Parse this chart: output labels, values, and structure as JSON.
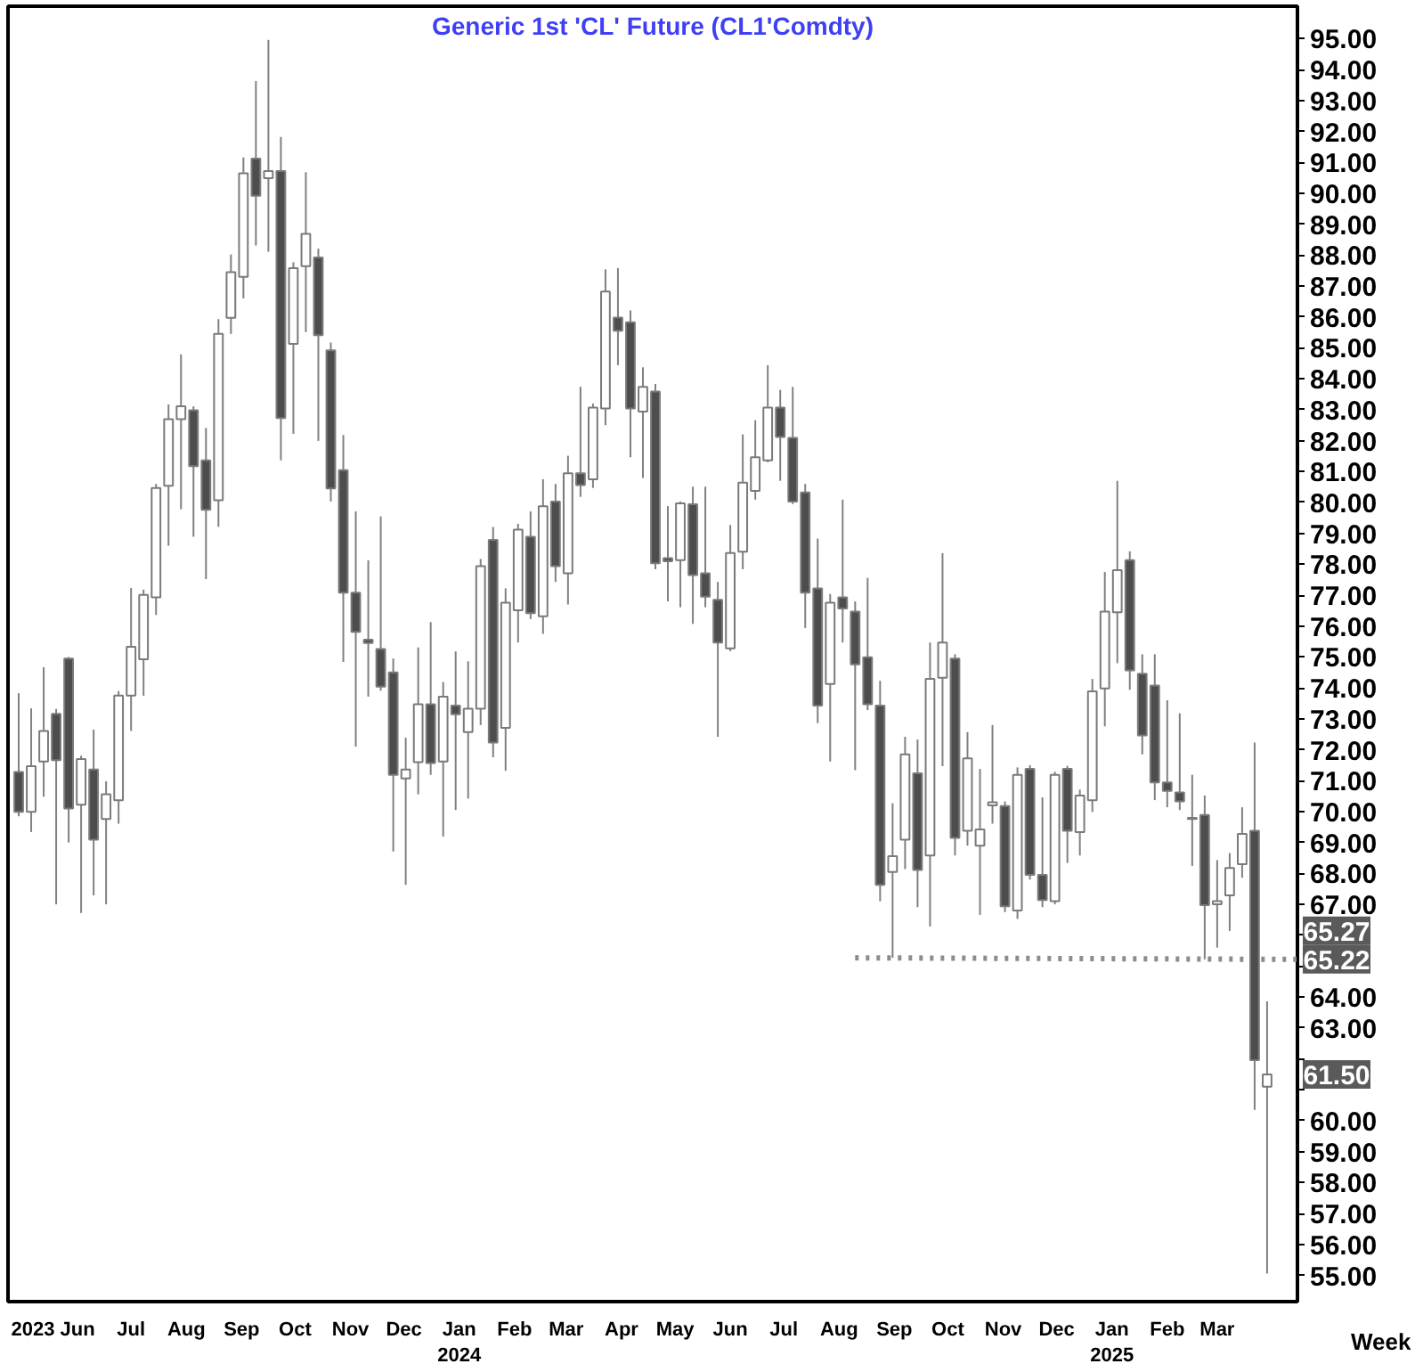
{
  "chart_data": {
    "type": "candlestick",
    "title": "Generic 1st 'CL' Future (CL1'Comdty)",
    "xlabel": "Week",
    "x": [
      "2023-05-08",
      "2023-05-15",
      "2023-05-22",
      "2023-05-29",
      "2023-06-05",
      "2023-06-12",
      "2023-06-19",
      "2023-06-26",
      "2023-07-03",
      "2023-07-10",
      "2023-07-17",
      "2023-07-24",
      "2023-07-31",
      "2023-08-07",
      "2023-08-14",
      "2023-08-21",
      "2023-08-28",
      "2023-09-04",
      "2023-09-11",
      "2023-09-18",
      "2023-09-25",
      "2023-10-02",
      "2023-10-09",
      "2023-10-16",
      "2023-10-23",
      "2023-10-30",
      "2023-11-06",
      "2023-11-13",
      "2023-11-20",
      "2023-11-27",
      "2023-12-04",
      "2023-12-11",
      "2023-12-18",
      "2023-12-25",
      "2024-01-01",
      "2024-01-08",
      "2024-01-15",
      "2024-01-22",
      "2024-01-29",
      "2024-02-05",
      "2024-02-12",
      "2024-02-19",
      "2024-02-26",
      "2024-03-04",
      "2024-03-11",
      "2024-03-18",
      "2024-03-25",
      "2024-04-01",
      "2024-04-08",
      "2024-04-15",
      "2024-04-22",
      "2024-04-29",
      "2024-05-06",
      "2024-05-13",
      "2024-05-20",
      "2024-05-27",
      "2024-06-03",
      "2024-06-10",
      "2024-06-17",
      "2024-06-24",
      "2024-07-01",
      "2024-07-08",
      "2024-07-15",
      "2024-07-22",
      "2024-07-29",
      "2024-08-05",
      "2024-08-12",
      "2024-08-19",
      "2024-08-26",
      "2024-09-02",
      "2024-09-09",
      "2024-09-16",
      "2024-09-23",
      "2024-09-30",
      "2024-10-07",
      "2024-10-14",
      "2024-10-21",
      "2024-10-28",
      "2024-11-04",
      "2024-11-11",
      "2024-11-18",
      "2024-11-25",
      "2024-12-02",
      "2024-12-09",
      "2024-12-16",
      "2024-12-23",
      "2024-12-30",
      "2025-01-06",
      "2025-01-13",
      "2025-01-20",
      "2025-01-27",
      "2025-02-03",
      "2025-02-10",
      "2025-02-17",
      "2025-02-24",
      "2025-03-03",
      "2025-03-10",
      "2025-03-17",
      "2025-03-24",
      "2025-03-31",
      "2025-04-07"
    ],
    "ohlc": [
      [
        71.28,
        73.83,
        69.85,
        69.99
      ],
      [
        69.99,
        73.34,
        69.34,
        71.47
      ],
      [
        71.62,
        74.67,
        70.48,
        72.61
      ],
      [
        73.16,
        73.32,
        67.0,
        71.66
      ],
      [
        74.95,
        75.0,
        69.0,
        70.1
      ],
      [
        70.22,
        71.81,
        66.72,
        71.7
      ],
      [
        71.36,
        72.65,
        67.29,
        69.09
      ],
      [
        69.76,
        70.98,
        67.0,
        70.56
      ],
      [
        70.37,
        73.9,
        69.61,
        73.75
      ],
      [
        73.75,
        77.23,
        72.61,
        75.33
      ],
      [
        74.93,
        77.18,
        73.75,
        77.01
      ],
      [
        76.93,
        80.6,
        76.36,
        80.47
      ],
      [
        80.54,
        83.17,
        78.6,
        82.69
      ],
      [
        82.69,
        84.79,
        79.78,
        83.11
      ],
      [
        82.98,
        83.11,
        78.89,
        81.17
      ],
      [
        81.36,
        82.41,
        77.52,
        79.76
      ],
      [
        80.07,
        85.93,
        79.21,
        85.45
      ],
      [
        85.97,
        88.02,
        85.45,
        87.45
      ],
      [
        87.3,
        91.16,
        86.6,
        90.65
      ],
      [
        91.12,
        93.63,
        88.31,
        89.92
      ],
      [
        90.49,
        94.96,
        88.11,
        90.72
      ],
      [
        90.72,
        91.82,
        81.36,
        82.73
      ],
      [
        85.13,
        87.77,
        82.22,
        87.58
      ],
      [
        87.64,
        90.68,
        85.51,
        88.69
      ],
      [
        87.92,
        88.21,
        81.99,
        85.41
      ],
      [
        84.92,
        85.17,
        80.03,
        80.45
      ],
      [
        81.04,
        82.18,
        74.84,
        77.08
      ],
      [
        77.08,
        79.71,
        72.1,
        75.81
      ],
      [
        75.56,
        78.13,
        73.72,
        75.45
      ],
      [
        75.26,
        79.55,
        73.91,
        74.04
      ],
      [
        74.5,
        74.95,
        68.71,
        71.19
      ],
      [
        71.07,
        72.39,
        67.63,
        71.36
      ],
      [
        71.6,
        75.31,
        70.56,
        73.47
      ],
      [
        73.47,
        76.13,
        71.19,
        71.57
      ],
      [
        71.62,
        74.19,
        69.19,
        73.72
      ],
      [
        73.43,
        75.18,
        70.05,
        73.15
      ],
      [
        72.57,
        74.86,
        70.42,
        73.33
      ],
      [
        73.33,
        78.17,
        72.8,
        77.94
      ],
      [
        78.79,
        79.21,
        71.76,
        72.23
      ],
      [
        72.71,
        77.22,
        71.32,
        76.76
      ],
      [
        76.51,
        79.31,
        75.47,
        79.12
      ],
      [
        78.89,
        79.71,
        76.23,
        76.42
      ],
      [
        76.32,
        80.75,
        75.75,
        79.88
      ],
      [
        80.03,
        80.6,
        77.43,
        77.94
      ],
      [
        77.71,
        81.51,
        76.7,
        80.94
      ],
      [
        80.94,
        83.74,
        80.18,
        80.56
      ],
      [
        80.75,
        83.2,
        80.47,
        83.07
      ],
      [
        83.04,
        87.54,
        82.5,
        86.82
      ],
      [
        85.98,
        87.58,
        84.44,
        85.55
      ],
      [
        85.83,
        86.21,
        81.46,
        83.04
      ],
      [
        82.94,
        84.37,
        80.79,
        83.74
      ],
      [
        83.59,
        83.83,
        77.84,
        78.03
      ],
      [
        78.2,
        79.88,
        76.8,
        78.1
      ],
      [
        78.13,
        80.03,
        76.61,
        79.97
      ],
      [
        79.94,
        80.51,
        76.07,
        77.65
      ],
      [
        77.71,
        80.51,
        76.61,
        76.95
      ],
      [
        76.85,
        77.43,
        72.42,
        75.47
      ],
      [
        75.28,
        79.27,
        75.19,
        78.36
      ],
      [
        78.41,
        82.2,
        77.84,
        80.64
      ],
      [
        80.37,
        82.66,
        80.09,
        81.46
      ],
      [
        81.36,
        84.44,
        81.3,
        83.07
      ],
      [
        83.07,
        83.64,
        80.7,
        82.12
      ],
      [
        82.09,
        83.74,
        79.95,
        80.03
      ],
      [
        80.32,
        80.6,
        75.94,
        77.08
      ],
      [
        77.22,
        78.83,
        72.86,
        73.43
      ],
      [
        74.13,
        77.04,
        71.62,
        76.76
      ],
      [
        76.93,
        80.09,
        75.47,
        76.57
      ],
      [
        76.47,
        76.8,
        71.34,
        74.76
      ],
      [
        74.99,
        77.56,
        73.28,
        73.47
      ],
      [
        73.43,
        74.23,
        67.1,
        67.63
      ],
      [
        68.05,
        70.27,
        65.27,
        68.56
      ],
      [
        69.09,
        72.42,
        68.14,
        71.85
      ],
      [
        71.24,
        72.33,
        66.91,
        68.11
      ],
      [
        68.58,
        75.47,
        66.28,
        74.29
      ],
      [
        74.33,
        78.36,
        71.47,
        75.47
      ],
      [
        74.95,
        75.09,
        68.58,
        69.15
      ],
      [
        69.38,
        72.57,
        68.9,
        71.72
      ],
      [
        68.9,
        71.38,
        66.66,
        69.42
      ],
      [
        70.2,
        72.8,
        69.61,
        70.3
      ],
      [
        70.18,
        70.33,
        66.75,
        66.94
      ],
      [
        66.8,
        71.43,
        66.53,
        71.19
      ],
      [
        71.38,
        71.5,
        67.8,
        67.95
      ],
      [
        67.95,
        70.46,
        66.91,
        67.14
      ],
      [
        67.1,
        71.29,
        67.0,
        71.19
      ],
      [
        71.38,
        71.48,
        68.34,
        69.38
      ],
      [
        69.34,
        70.71,
        68.58,
        70.52
      ],
      [
        70.37,
        74.29,
        69.99,
        73.89
      ],
      [
        73.98,
        77.75,
        72.76,
        76.47
      ],
      [
        76.45,
        80.7,
        74.8,
        77.81
      ],
      [
        78.13,
        78.42,
        73.94,
        74.57
      ],
      [
        74.46,
        75.09,
        71.85,
        72.46
      ],
      [
        74.08,
        75.09,
        70.37,
        70.94
      ],
      [
        70.94,
        73.6,
        70.14,
        70.67
      ],
      [
        70.62,
        73.18,
        70.05,
        70.33
      ],
      [
        69.8,
        71.19,
        68.24,
        69.76
      ],
      [
        69.89,
        70.52,
        65.22,
        66.97
      ],
      [
        67.0,
        68.43,
        65.6,
        67.1
      ],
      [
        67.29,
        68.66,
        66.14,
        68.18
      ],
      [
        68.3,
        70.14,
        67.86,
        69.28
      ],
      [
        69.38,
        72.23,
        60.35,
        61.96
      ],
      [
        61.1,
        63.86,
        55.06,
        61.5
      ]
    ],
    "colors": [
      "#4d4d4d",
      "#ffffff",
      "#ffffff",
      "#4d4d4d",
      "#4d4d4d",
      "#ffffff",
      "#4d4d4d",
      "#ffffff",
      "#ffffff",
      "#ffffff",
      "#ffffff",
      "#ffffff",
      "#ffffff",
      "#ffffff",
      "#4d4d4d",
      "#4d4d4d",
      "#ffffff",
      "#ffffff",
      "#ffffff",
      "#4d4d4d",
      "#ffffff",
      "#4d4d4d",
      "#ffffff",
      "#ffffff",
      "#4d4d4d",
      "#4d4d4d",
      "#4d4d4d",
      "#4d4d4d",
      "#4d4d4d",
      "#4d4d4d",
      "#4d4d4d",
      "#ffffff",
      "#ffffff",
      "#4d4d4d",
      "#ffffff",
      "#4d4d4d",
      "#ffffff",
      "#ffffff",
      "#4d4d4d",
      "#ffffff",
      "#ffffff",
      "#4d4d4d",
      "#ffffff",
      "#4d4d4d",
      "#ffffff",
      "#4d4d4d",
      "#ffffff",
      "#ffffff",
      "#4d4d4d",
      "#4d4d4d",
      "#ffffff",
      "#4d4d4d",
      "#4d4d4d",
      "#ffffff",
      "#4d4d4d",
      "#4d4d4d",
      "#4d4d4d",
      "#ffffff",
      "#ffffff",
      "#ffffff",
      "#ffffff",
      "#4d4d4d",
      "#4d4d4d",
      "#4d4d4d",
      "#4d4d4d",
      "#ffffff",
      "#4d4d4d",
      "#4d4d4d",
      "#4d4d4d",
      "#4d4d4d",
      "#ffffff",
      "#ffffff",
      "#4d4d4d",
      "#ffffff",
      "#ffffff",
      "#4d4d4d",
      "#ffffff",
      "#ffffff",
      "#ffffff",
      "#4d4d4d",
      "#ffffff",
      "#4d4d4d",
      "#4d4d4d",
      "#ffffff",
      "#4d4d4d",
      "#ffffff",
      "#ffffff",
      "#ffffff",
      "#ffffff",
      "#4d4d4d",
      "#4d4d4d",
      "#4d4d4d",
      "#4d4d4d",
      "#4d4d4d",
      "#4d4d4d",
      "#4d4d4d",
      "#ffffff",
      "#ffffff",
      "#ffffff",
      "#4d4d4d",
      "#ffffff"
    ],
    "series": [
      {
        "type": "line",
        "color": "#8c8c8c",
        "line_style": "dotted",
        "x": [
          "2024-08-19",
          "2025-04-24"
        ],
        "values": [
          65.27,
          65.22
        ]
      }
    ],
    "annotations": [
      {
        "text": "65.27",
        "y": 65.27
      },
      {
        "text": "65.22",
        "x": "2025-04-24",
        "y": 65.22
      },
      {
        "text": "61.50",
        "y": 61.5
      }
    ],
    "xlim": [
      "2023-05-02",
      "2025-04-24"
    ],
    "ylim": [
      54.15,
      96.05
    ],
    "xticks": [
      {
        "value": "2023-05-16",
        "label": "2023"
      },
      {
        "value": "2023-06-10",
        "label": "Jun"
      },
      {
        "value": "2023-07-10",
        "label": "Jul"
      },
      {
        "value": "2023-08-10",
        "label": "Aug"
      },
      {
        "value": "2023-09-10",
        "label": "Sep"
      },
      {
        "value": "2023-10-10",
        "label": "Oct"
      },
      {
        "value": "2023-11-10",
        "label": "Nov"
      },
      {
        "value": "2023-12-10",
        "label": "Dec"
      },
      {
        "value": "2024-01-10",
        "label": "Jan\n2024"
      },
      {
        "value": "2024-02-10",
        "label": "Feb"
      },
      {
        "value": "2024-03-10",
        "label": "Mar"
      },
      {
        "value": "2024-04-10",
        "label": "Apr"
      },
      {
        "value": "2024-05-10",
        "label": "May"
      },
      {
        "value": "2024-06-10",
        "label": "Jun"
      },
      {
        "value": "2024-07-10",
        "label": "Jul"
      },
      {
        "value": "2024-08-10",
        "label": "Aug"
      },
      {
        "value": "2024-09-10",
        "label": "Sep"
      },
      {
        "value": "2024-10-10",
        "label": "Oct"
      },
      {
        "value": "2024-11-10",
        "label": "Nov"
      },
      {
        "value": "2024-12-10",
        "label": "Dec"
      },
      {
        "value": "2025-01-10",
        "label": "Jan\n2025"
      },
      {
        "value": "2025-02-10",
        "label": "Feb"
      },
      {
        "value": "2025-03-10",
        "label": "Mar"
      }
    ],
    "yticks": [
      {
        "value": 55,
        "label": "55.00"
      },
      {
        "value": 56,
        "label": "56.00"
      },
      {
        "value": 57,
        "label": "57.00"
      },
      {
        "value": 58,
        "label": "58.00"
      },
      {
        "value": 59,
        "label": "59.00"
      },
      {
        "value": 60,
        "label": "60.00"
      },
      {
        "value": 61,
        "label": null
      },
      {
        "value": 62,
        "label": null
      },
      {
        "value": 63,
        "label": "63.00"
      },
      {
        "value": 64,
        "label": "64.00"
      },
      {
        "value": 65,
        "label": null
      },
      {
        "value": 66,
        "label": null
      },
      {
        "value": 67,
        "label": "67.00"
      },
      {
        "value": 68,
        "label": "68.00"
      },
      {
        "value": 69,
        "label": "69.00"
      },
      {
        "value": 70,
        "label": "70.00"
      },
      {
        "value": 71,
        "label": "71.00"
      },
      {
        "value": 72,
        "label": "72.00"
      },
      {
        "value": 73,
        "label": "73.00"
      },
      {
        "value": 74,
        "label": "74.00"
      },
      {
        "value": 75,
        "label": "75.00"
      },
      {
        "value": 76,
        "label": "76.00"
      },
      {
        "value": 77,
        "label": "77.00"
      },
      {
        "value": 78,
        "label": "78.00"
      },
      {
        "value": 79,
        "label": "79.00"
      },
      {
        "value": 80,
        "label": "80.00"
      },
      {
        "value": 81,
        "label": "81.00"
      },
      {
        "value": 82,
        "label": "82.00"
      },
      {
        "value": 83,
        "label": "83.00"
      },
      {
        "value": 84,
        "label": "84.00"
      },
      {
        "value": 85,
        "label": "85.00"
      },
      {
        "value": 86,
        "label": "86.00"
      },
      {
        "value": 87,
        "label": "87.00"
      },
      {
        "value": 88,
        "label": "88.00"
      },
      {
        "value": 89,
        "label": "89.00"
      },
      {
        "value": 90,
        "label": "90.00"
      },
      {
        "value": 91,
        "label": "91.00"
      },
      {
        "value": 92,
        "label": "92.00"
      },
      {
        "value": 93,
        "label": "93.00"
      },
      {
        "value": 94,
        "label": "94.00"
      },
      {
        "value": 95,
        "label": "95.00"
      }
    ]
  }
}
